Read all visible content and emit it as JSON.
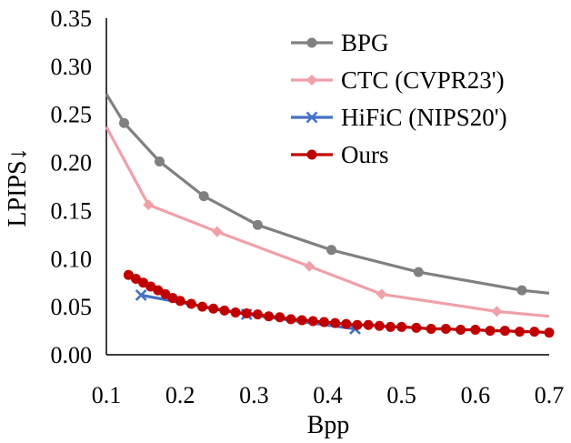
{
  "chart_data": {
    "type": "line",
    "xlabel": "Bpp",
    "ylabel": "LPIPS↓",
    "xlim": [
      0.1,
      0.7
    ],
    "ylim": [
      0.0,
      0.35
    ],
    "xticks": [
      "0.1",
      "0.2",
      "0.3",
      "0.4",
      "0.5",
      "0.6",
      "0.7"
    ],
    "yticks": [
      "0.00",
      "0.05",
      "0.10",
      "0.15",
      "0.20",
      "0.25",
      "0.30",
      "0.35"
    ],
    "grid": false,
    "legend_position": "top-right",
    "series": [
      {
        "name": "BPG",
        "color": "#808080",
        "marker": "circle",
        "x": [
          0.1,
          0.124,
          0.172,
          0.232,
          0.305,
          0.405,
          0.523,
          0.663,
          0.7
        ],
        "y": [
          0.271,
          0.241,
          0.201,
          0.165,
          0.135,
          0.109,
          0.086,
          0.067,
          0.064
        ]
      },
      {
        "name": "CTC (CVPR23')",
        "color": "#f0a0a8",
        "marker": "diamond",
        "x": [
          0.1,
          0.157,
          0.25,
          0.375,
          0.473,
          0.629,
          0.7
        ],
        "y": [
          0.237,
          0.156,
          0.128,
          0.092,
          0.063,
          0.045,
          0.04
        ]
      },
      {
        "name": "HiFiC (NIPS20')",
        "color": "#4472c4",
        "marker": "x",
        "x": [
          0.147,
          0.29,
          0.437
        ],
        "y": [
          0.062,
          0.042,
          0.027
        ]
      },
      {
        "name": "Ours",
        "color": "#c00000",
        "marker": "circle",
        "x": [
          0.13,
          0.14,
          0.15,
          0.16,
          0.17,
          0.18,
          0.19,
          0.2,
          0.215,
          0.23,
          0.245,
          0.26,
          0.275,
          0.29,
          0.305,
          0.32,
          0.335,
          0.35,
          0.365,
          0.38,
          0.395,
          0.41,
          0.425,
          0.44,
          0.455,
          0.47,
          0.485,
          0.5,
          0.52,
          0.54,
          0.56,
          0.58,
          0.6,
          0.62,
          0.64,
          0.66,
          0.68,
          0.7
        ],
        "y": [
          0.083,
          0.079,
          0.075,
          0.071,
          0.067,
          0.063,
          0.059,
          0.056,
          0.053,
          0.05,
          0.048,
          0.046,
          0.044,
          0.043,
          0.042,
          0.04,
          0.039,
          0.037,
          0.036,
          0.035,
          0.034,
          0.033,
          0.032,
          0.031,
          0.031,
          0.03,
          0.029,
          0.029,
          0.028,
          0.027,
          0.027,
          0.026,
          0.026,
          0.025,
          0.025,
          0.024,
          0.024,
          0.023
        ]
      }
    ]
  }
}
